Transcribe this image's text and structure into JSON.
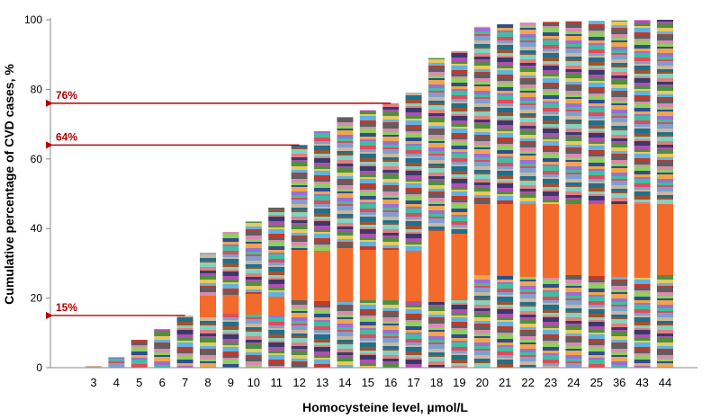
{
  "chart_data": {
    "type": "bar",
    "stacked": true,
    "title": "",
    "xlabel": "Homocysteine level, µmol/L",
    "ylabel": "Cumulative percentage of CVD cases, %",
    "categories": [
      "3",
      "4",
      "5",
      "6",
      "7",
      "8",
      "9",
      "10",
      "11",
      "12",
      "13",
      "14",
      "15",
      "16",
      "17",
      "18",
      "19",
      "20",
      "21",
      "22",
      "23",
      "24",
      "25",
      "36",
      "43",
      "44"
    ],
    "values": [
      0.5,
      3,
      8,
      11,
      15,
      33,
      39,
      42,
      46,
      64,
      68,
      72,
      74,
      76,
      79,
      89,
      91,
      98,
      98.7,
      99.2,
      99.4,
      99.6,
      99.7,
      99.8,
      99.9,
      100
    ],
    "ylim": [
      0,
      100
    ],
    "yticks": [
      "0",
      "20",
      "40",
      "60",
      "80",
      "100"
    ],
    "grid": false,
    "annotations": [
      {
        "label": "15%",
        "value": 15,
        "category": "7"
      },
      {
        "label": "64%",
        "value": 64,
        "category": "12"
      },
      {
        "label": "76%",
        "value": 76,
        "category": "16"
      }
    ],
    "colors": {
      "annotation": "#b30000",
      "dominant_segment": "#f26b2a",
      "palette": [
        "#c9b79c",
        "#7f9fd1",
        "#e04b5a",
        "#3fbf9f",
        "#9a6fd3",
        "#f0a64a",
        "#2e4e8f",
        "#8fcf5f",
        "#d98ab0",
        "#5f5f5f",
        "#c03a2b",
        "#5fb3e0",
        "#e8c860",
        "#4f8f3f",
        "#b04fb0",
        "#3a3a6a",
        "#e07f7f",
        "#7fd3c0",
        "#a0522d",
        "#1f6f8f"
      ]
    }
  }
}
